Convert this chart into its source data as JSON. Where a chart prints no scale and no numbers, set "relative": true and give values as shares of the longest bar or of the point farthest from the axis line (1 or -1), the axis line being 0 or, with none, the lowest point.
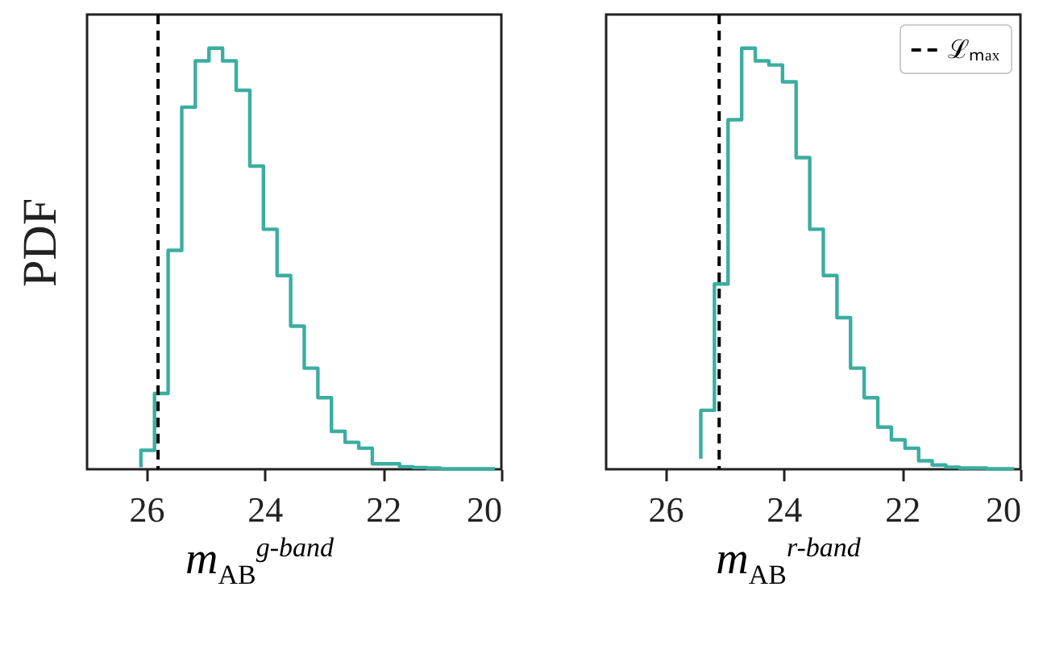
{
  "chart_data": [
    {
      "type": "step",
      "relative": true,
      "ylabel": "PDF",
      "xlabel": "m$_{AB}$$^{g-band}$",
      "x": [
        20.11,
        20.34,
        20.57,
        20.8,
        21.03,
        21.26,
        21.49,
        21.72,
        21.95,
        22.18,
        22.41,
        22.64,
        22.87,
        23.1,
        23.33,
        23.56,
        23.79,
        24.02,
        24.25,
        24.48,
        24.71,
        24.94,
        25.17,
        25.4,
        25.63,
        25.86,
        26.09
      ],
      "values": [
        0.001,
        0.001,
        0.001,
        0.001,
        0.003,
        0.004,
        0.006,
        0.013,
        0.013,
        0.05,
        0.064,
        0.09,
        0.17,
        0.24,
        0.34,
        0.46,
        0.57,
        0.72,
        0.9,
        0.97,
        1.0,
        0.97,
        0.86,
        0.52,
        0.18,
        0.045,
        0.005
      ],
      "color": "#3aaea0",
      "xlim": [
        27,
        20
      ],
      "xticks": [
        26,
        24,
        22,
        20
      ],
      "ref_lines": [
        {
          "axis": "x",
          "value": 25.8,
          "label": null,
          "color": "#000000",
          "line_style": "dashed"
        }
      ]
    },
    {
      "type": "step",
      "relative": true,
      "xlabel": "m$_{AB}$$^{r-band}$",
      "x": [
        20.11,
        20.34,
        20.57,
        20.8,
        21.03,
        21.26,
        21.49,
        21.72,
        21.95,
        22.18,
        22.41,
        22.64,
        22.87,
        23.1,
        23.33,
        23.56,
        23.79,
        24.02,
        24.25,
        24.48,
        24.71,
        24.94,
        25.17,
        25.4
      ],
      "values": [
        0.001,
        0.001,
        0.003,
        0.003,
        0.005,
        0.01,
        0.02,
        0.05,
        0.07,
        0.1,
        0.17,
        0.24,
        0.36,
        0.46,
        0.57,
        0.74,
        0.92,
        0.96,
        0.97,
        1.0,
        0.83,
        0.44,
        0.14,
        0.025
      ],
      "color": "#3aaea0",
      "xlim": [
        27,
        20
      ],
      "xticks": [
        26,
        24,
        22,
        20
      ],
      "legend": "top right",
      "ref_lines": [
        {
          "axis": "x",
          "value": 25.09,
          "label": "ℒₘₐₓ",
          "color": "#000000",
          "line_style": "dashed"
        }
      ]
    }
  ]
}
